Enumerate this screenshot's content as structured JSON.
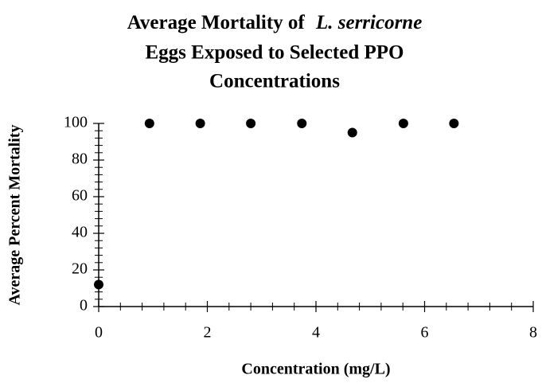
{
  "chart_data": {
    "type": "scatter",
    "title_parts": [
      "Average Mortality of",
      "L. serricorne",
      "Eggs Exposed to Selected PPO",
      "Concentrations"
    ],
    "x_label": "Concentration (mg/L)",
    "y_label": "Average Percent Mortality",
    "series": [
      {
        "name": "Mortality",
        "color": "#000000",
        "x": [
          0,
          0.935,
          1.87,
          2.8,
          3.74,
          4.67,
          5.61,
          6.54
        ],
        "values": [
          12,
          100,
          100,
          100,
          100,
          95,
          100,
          100
        ]
      }
    ],
    "xlim": [
      0,
      8
    ],
    "xticks": [
      0,
      2,
      4,
      6,
      8
    ],
    "ylim": [
      0,
      100
    ],
    "yticks": [
      0,
      20,
      40,
      60,
      80,
      100
    ]
  }
}
